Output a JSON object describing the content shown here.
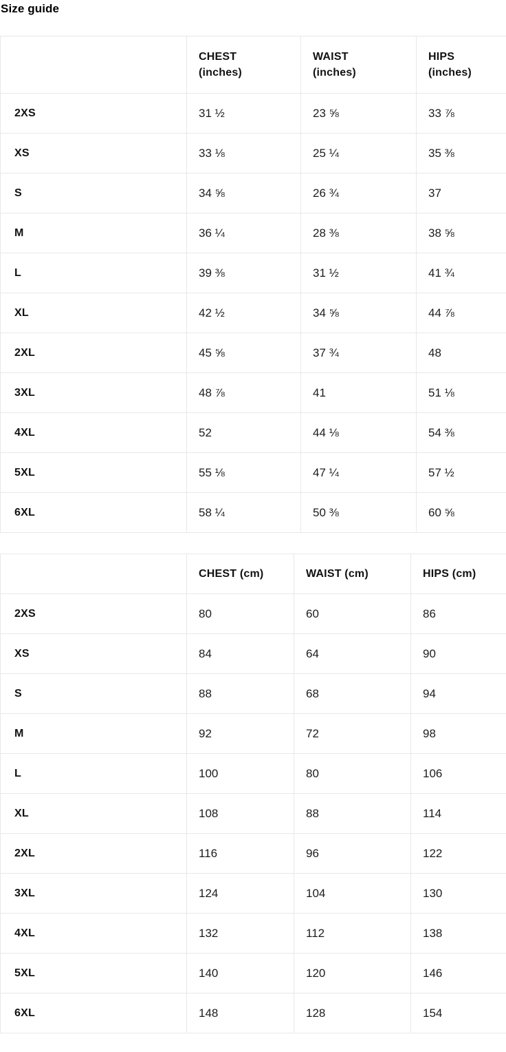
{
  "page": {
    "title": "Size guide"
  },
  "tables": [
    {
      "id": "inches",
      "columns": [
        "",
        "CHEST\n(inches)",
        "WAIST\n(inches)",
        "HIPS\n(inches)"
      ],
      "rows": [
        {
          "size": "2XS",
          "chest": "31 ½",
          "waist": "23 ⅝",
          "hips": "33 ⅞"
        },
        {
          "size": "XS",
          "chest": "33 ⅛",
          "waist": "25 ¼",
          "hips": "35 ⅜"
        },
        {
          "size": "S",
          "chest": "34 ⅝",
          "waist": "26 ¾",
          "hips": "37"
        },
        {
          "size": "M",
          "chest": "36 ¼",
          "waist": "28 ⅜",
          "hips": "38 ⅝"
        },
        {
          "size": "L",
          "chest": "39 ⅜",
          "waist": "31 ½",
          "hips": "41 ¾"
        },
        {
          "size": "XL",
          "chest": "42 ½",
          "waist": "34 ⅝",
          "hips": "44 ⅞"
        },
        {
          "size": "2XL",
          "chest": "45 ⅝",
          "waist": "37 ¾",
          "hips": "48"
        },
        {
          "size": "3XL",
          "chest": "48 ⅞",
          "waist": "41",
          "hips": "51 ⅛"
        },
        {
          "size": "4XL",
          "chest": "52",
          "waist": "44 ⅛",
          "hips": "54 ⅜"
        },
        {
          "size": "5XL",
          "chest": "55 ⅛",
          "waist": "47 ¼",
          "hips": "57 ½"
        },
        {
          "size": "6XL",
          "chest": "58 ¼",
          "waist": "50 ⅜",
          "hips": "60 ⅝"
        }
      ]
    },
    {
      "id": "cm",
      "columns": [
        "",
        "CHEST (cm)",
        "WAIST (cm)",
        "HIPS (cm)"
      ],
      "rows": [
        {
          "size": "2XS",
          "chest": "80",
          "waist": "60",
          "hips": "86"
        },
        {
          "size": "XS",
          "chest": "84",
          "waist": "64",
          "hips": "90"
        },
        {
          "size": "S",
          "chest": "88",
          "waist": "68",
          "hips": "94"
        },
        {
          "size": "M",
          "chest": "92",
          "waist": "72",
          "hips": "98"
        },
        {
          "size": "L",
          "chest": "100",
          "waist": "80",
          "hips": "106"
        },
        {
          "size": "XL",
          "chest": "108",
          "waist": "88",
          "hips": "114"
        },
        {
          "size": "2XL",
          "chest": "116",
          "waist": "96",
          "hips": "122"
        },
        {
          "size": "3XL",
          "chest": "124",
          "waist": "104",
          "hips": "130"
        },
        {
          "size": "4XL",
          "chest": "132",
          "waist": "112",
          "hips": "138"
        },
        {
          "size": "5XL",
          "chest": "140",
          "waist": "120",
          "hips": "146"
        },
        {
          "size": "6XL",
          "chest": "148",
          "waist": "128",
          "hips": "154"
        }
      ]
    }
  ],
  "colors": {
    "text": "#141414",
    "heading_text": "#111111",
    "border": "#e8e8e8",
    "background": "#ffffff"
  }
}
